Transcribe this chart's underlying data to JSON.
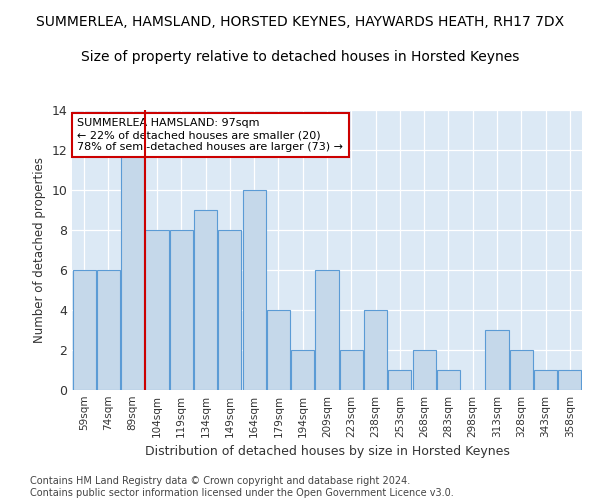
{
  "title": "SUMMERLEA, HAMSLAND, HORSTED KEYNES, HAYWARDS HEATH, RH17 7DX",
  "subtitle": "Size of property relative to detached houses in Horsted Keynes",
  "xlabel": "Distribution of detached houses by size in Horsted Keynes",
  "ylabel": "Number of detached properties",
  "categories": [
    "59sqm",
    "74sqm",
    "89sqm",
    "104sqm",
    "119sqm",
    "134sqm",
    "149sqm",
    "164sqm",
    "179sqm",
    "194sqm",
    "209sqm",
    "223sqm",
    "238sqm",
    "253sqm",
    "268sqm",
    "283sqm",
    "298sqm",
    "313sqm",
    "328sqm",
    "343sqm",
    "358sqm"
  ],
  "values": [
    6,
    6,
    12,
    8,
    8,
    9,
    8,
    10,
    4,
    2,
    6,
    2,
    4,
    1,
    2,
    1,
    0,
    3,
    2,
    1,
    1
  ],
  "bar_color": "#c5d8ea",
  "bar_edge_color": "#5b9bd5",
  "redline_x": 2.5,
  "annotation_text": "SUMMERLEA HAMSLAND: 97sqm\n← 22% of detached houses are smaller (20)\n78% of semi-detached houses are larger (73) →",
  "annotation_box_color": "#ffffff",
  "annotation_box_edge": "#cc0000",
  "ylim": [
    0,
    14
  ],
  "yticks": [
    0,
    2,
    4,
    6,
    8,
    10,
    12,
    14
  ],
  "footer": "Contains HM Land Registry data © Crown copyright and database right 2024.\nContains public sector information licensed under the Open Government Licence v3.0.",
  "fig_bg_color": "#ffffff",
  "plot_bg_color": "#dce9f5",
  "grid_color": "#ffffff",
  "title_fontsize": 10,
  "subtitle_fontsize": 10,
  "footer_fontsize": 7.0
}
